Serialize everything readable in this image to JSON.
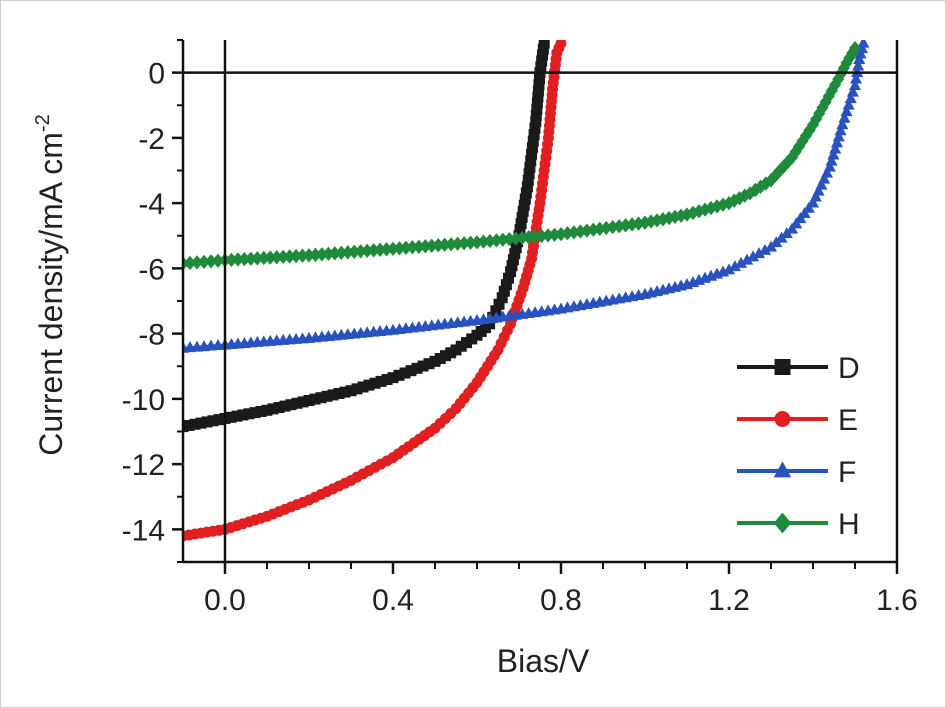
{
  "chart_data": {
    "type": "line",
    "title": "",
    "xlabel": "Bias/V",
    "ylabel_main": "Current density/mA cm",
    "ylabel_sup": "-2",
    "xlim": [
      -0.1,
      1.6
    ],
    "ylim": [
      -15,
      1
    ],
    "x_ticks": [
      0.0,
      0.4,
      0.8,
      1.2,
      1.6
    ],
    "x_tick_labels": [
      "0.0",
      "0.4",
      "0.8",
      "1.2",
      "1.6"
    ],
    "y_ticks": [
      0,
      -2,
      -4,
      -6,
      -8,
      -10,
      -12,
      -14
    ],
    "y_tick_labels": [
      "0",
      "-2",
      "-4",
      "-6",
      "-8",
      "-10",
      "-12",
      "-14"
    ],
    "reference_lines": {
      "x": 0,
      "y": 0
    },
    "legend_position": "bottom-right",
    "series": [
      {
        "name": "D",
        "color": "#1a1a1a",
        "marker": "square",
        "points": [
          [
            -0.1,
            -10.85
          ],
          [
            0.0,
            -10.6
          ],
          [
            0.1,
            -10.35
          ],
          [
            0.2,
            -10.05
          ],
          [
            0.3,
            -9.75
          ],
          [
            0.4,
            -9.35
          ],
          [
            0.5,
            -8.85
          ],
          [
            0.55,
            -8.5
          ],
          [
            0.6,
            -8.05
          ],
          [
            0.63,
            -7.7
          ],
          [
            0.66,
            -6.9
          ],
          [
            0.68,
            -6.1
          ],
          [
            0.7,
            -5.0
          ],
          [
            0.72,
            -3.5
          ],
          [
            0.74,
            -1.5
          ],
          [
            0.75,
            0.0
          ],
          [
            0.76,
            0.9
          ]
        ]
      },
      {
        "name": "E",
        "color": "#e02020",
        "marker": "circle",
        "points": [
          [
            -0.1,
            -14.2
          ],
          [
            0.0,
            -14.0
          ],
          [
            0.1,
            -13.6
          ],
          [
            0.2,
            -13.1
          ],
          [
            0.3,
            -12.5
          ],
          [
            0.4,
            -11.8
          ],
          [
            0.5,
            -10.9
          ],
          [
            0.55,
            -10.3
          ],
          [
            0.6,
            -9.5
          ],
          [
            0.65,
            -8.5
          ],
          [
            0.68,
            -7.7
          ],
          [
            0.71,
            -6.6
          ],
          [
            0.73,
            -5.7
          ],
          [
            0.75,
            -4.0
          ],
          [
            0.76,
            -3.0
          ],
          [
            0.77,
            -2.0
          ],
          [
            0.78,
            -0.5
          ],
          [
            0.79,
            0.6
          ],
          [
            0.8,
            0.9
          ]
        ]
      },
      {
        "name": "F",
        "color": "#2a52be",
        "marker": "triangle",
        "points": [
          [
            -0.1,
            -8.45
          ],
          [
            0.0,
            -8.35
          ],
          [
            0.2,
            -8.15
          ],
          [
            0.4,
            -7.9
          ],
          [
            0.6,
            -7.6
          ],
          [
            0.8,
            -7.25
          ],
          [
            1.0,
            -6.8
          ],
          [
            1.1,
            -6.5
          ],
          [
            1.2,
            -6.05
          ],
          [
            1.3,
            -5.35
          ],
          [
            1.35,
            -4.8
          ],
          [
            1.4,
            -4.0
          ],
          [
            1.44,
            -2.9
          ],
          [
            1.47,
            -1.6
          ],
          [
            1.5,
            -0.4
          ],
          [
            1.51,
            0.4
          ],
          [
            1.52,
            0.9
          ]
        ]
      },
      {
        "name": "H",
        "color": "#1f8a3c",
        "marker": "diamond",
        "points": [
          [
            -0.1,
            -5.85
          ],
          [
            0.0,
            -5.75
          ],
          [
            0.2,
            -5.6
          ],
          [
            0.4,
            -5.4
          ],
          [
            0.6,
            -5.2
          ],
          [
            0.8,
            -4.95
          ],
          [
            1.0,
            -4.6
          ],
          [
            1.1,
            -4.35
          ],
          [
            1.2,
            -4.0
          ],
          [
            1.25,
            -3.7
          ],
          [
            1.3,
            -3.3
          ],
          [
            1.35,
            -2.6
          ],
          [
            1.4,
            -1.6
          ],
          [
            1.43,
            -0.9
          ],
          [
            1.46,
            -0.2
          ],
          [
            1.48,
            0.3
          ],
          [
            1.5,
            0.75
          ]
        ]
      }
    ]
  }
}
